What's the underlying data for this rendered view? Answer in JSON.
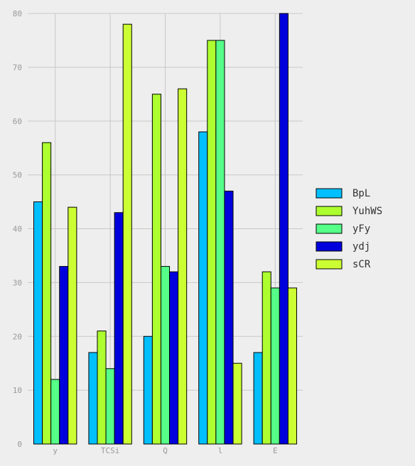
{
  "chart_data": {
    "type": "bar",
    "title": "",
    "xlabel": "",
    "ylabel": "",
    "categories": [
      "y",
      "TCSi",
      "Q",
      "l",
      "E"
    ],
    "ylim": [
      0,
      80
    ],
    "yticks": [
      0,
      10,
      20,
      30,
      40,
      50,
      60,
      70,
      80
    ],
    "grid": true,
    "legend_position": "right",
    "series": [
      {
        "name": "BpL",
        "color": "#00bfff",
        "values": [
          45,
          17,
          20,
          58,
          17
        ]
      },
      {
        "name": "YuhWS",
        "color": "#adff2f",
        "values": [
          56,
          21,
          65,
          75,
          32
        ]
      },
      {
        "name": "yFy",
        "color": "#55ff88",
        "values": [
          12,
          14,
          33,
          75,
          29
        ]
      },
      {
        "name": "ydj",
        "color": "#0000dd",
        "values": [
          33,
          43,
          32,
          47,
          80
        ]
      },
      {
        "name": "sCR",
        "color": "#ccff33",
        "values": [
          44,
          78,
          66,
          15,
          29
        ]
      }
    ]
  }
}
